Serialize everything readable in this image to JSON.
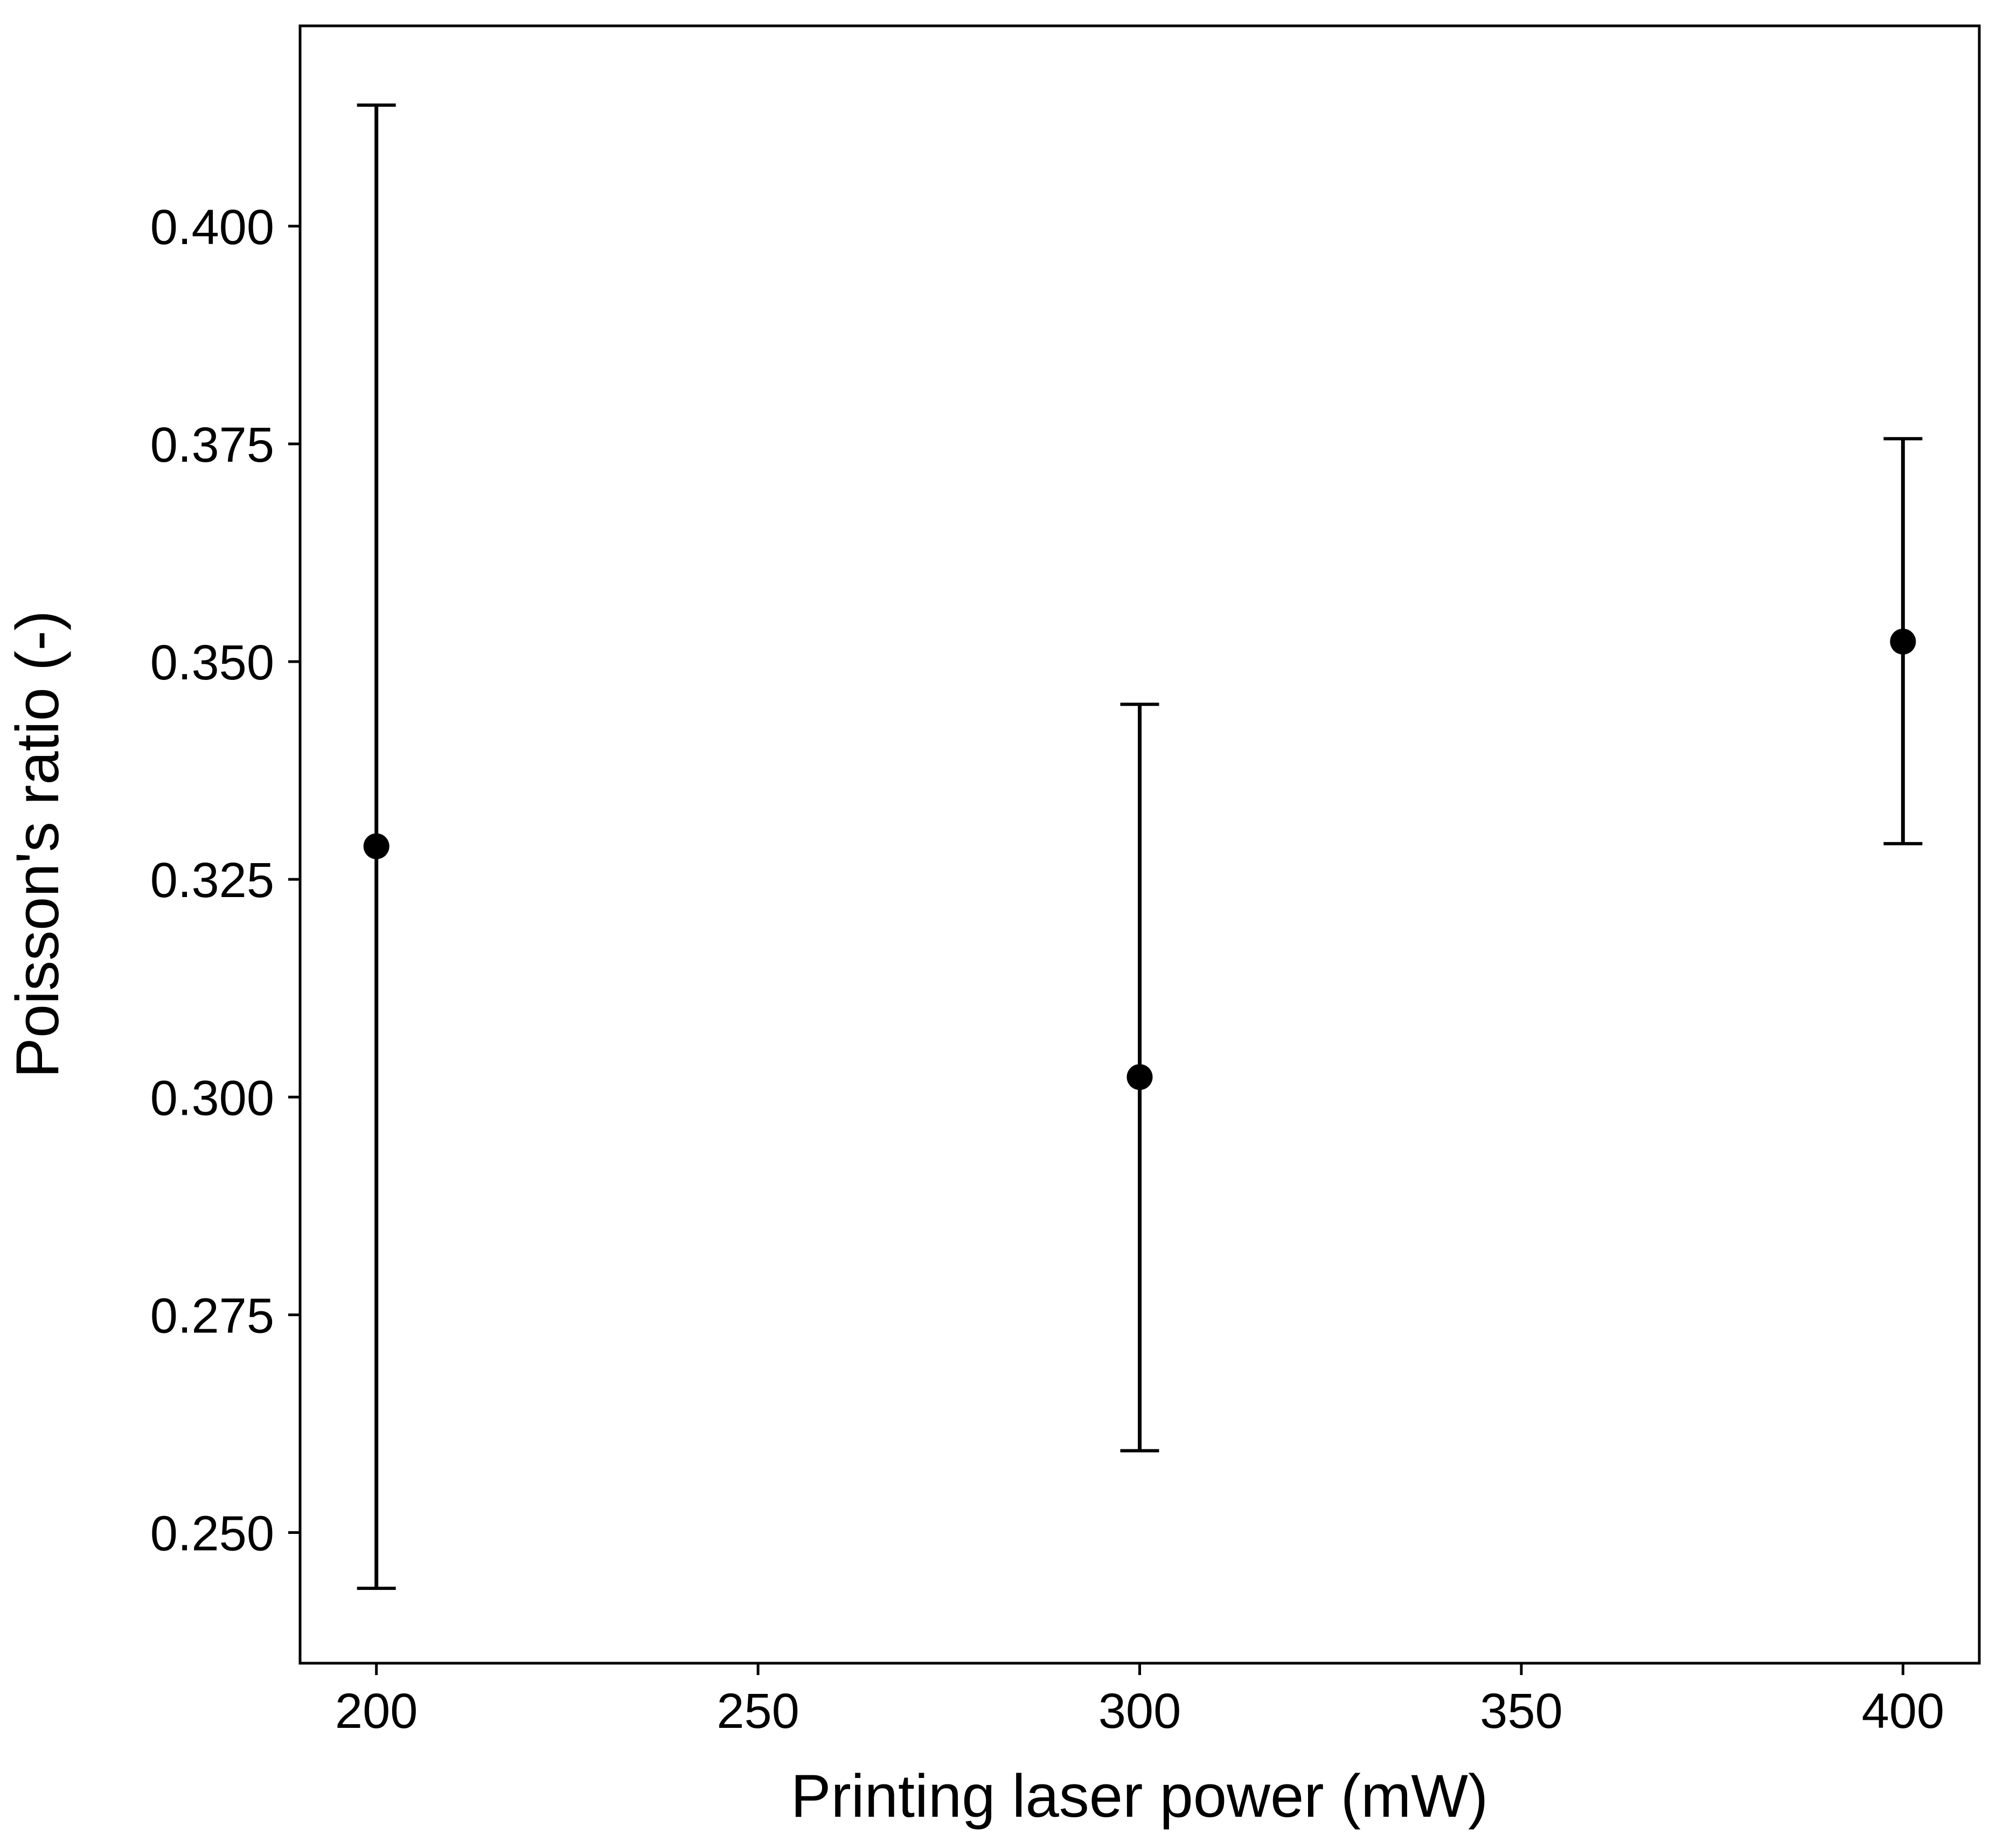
{
  "chart_data": {
    "type": "scatter",
    "title": "",
    "xlabel": "Printing laser power (mW)",
    "ylabel": "Poisson's ratio (-)",
    "xlim": [
      190,
      410
    ],
    "ylim": [
      0.235,
      0.423
    ],
    "x_ticks": [
      200,
      250,
      300,
      350,
      400
    ],
    "x_tick_labels": [
      "200",
      "250",
      "300",
      "350",
      "400"
    ],
    "y_ticks": [
      0.25,
      0.275,
      0.3,
      0.325,
      0.35,
      0.375,
      0.4
    ],
    "y_tick_labels": [
      "0.250",
      "0.275",
      "0.300",
      "0.325",
      "0.350",
      "0.375",
      "0.400"
    ],
    "grid": false,
    "series": [
      {
        "points": [
          {
            "x": 200,
            "y": 0.3288,
            "y_err_low": 0.2436,
            "y_err_high": 0.4139
          },
          {
            "x": 300,
            "y": 0.3023,
            "y_err_low": 0.2594,
            "y_err_high": 0.3451
          },
          {
            "x": 400,
            "y": 0.3523,
            "y_err_low": 0.3291,
            "y_err_high": 0.3756
          }
        ]
      }
    ],
    "colors": {
      "marker": "#000000",
      "errorbar": "#000000",
      "axes": "#000000"
    }
  }
}
